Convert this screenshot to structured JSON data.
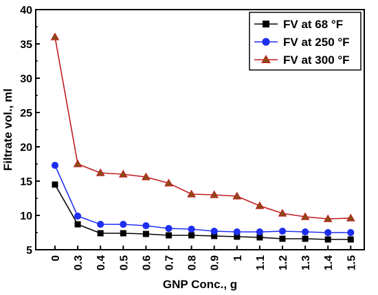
{
  "chart_data": {
    "type": "line",
    "xlabel": "GNP Conc., g",
    "ylabel": "Filtrate vol., ml",
    "categories": [
      "0",
      "0.3",
      "0.4",
      "0.5",
      "0.6",
      "0.7",
      "0.8",
      "0.9",
      "1",
      "1.1",
      "1.2",
      "1.3",
      "1.4",
      "1.5"
    ],
    "ylim": [
      5,
      40
    ],
    "yticks": [
      "5",
      "10",
      "15",
      "20",
      "25",
      "30",
      "35",
      "40"
    ],
    "grid": false,
    "legend_position": "top-right",
    "series": [
      {
        "name": "FV at 68 °F",
        "color": "#000000",
        "marker": "square",
        "values": [
          14.5,
          8.7,
          7.4,
          7.4,
          7.3,
          7.1,
          7.1,
          7.0,
          6.9,
          6.8,
          6.6,
          6.6,
          6.5,
          6.5
        ]
      },
      {
        "name": "FV at 250 °F",
        "color": "#1f2ff0",
        "marker": "circle",
        "values": [
          17.3,
          9.9,
          8.7,
          8.7,
          8.5,
          8.1,
          8.0,
          7.7,
          7.6,
          7.6,
          7.7,
          7.6,
          7.5,
          7.5
        ]
      },
      {
        "name": "FV at 300 °F",
        "color": "#c0191e",
        "marker": "triangle",
        "marker_fill": "#8a4b14",
        "values": [
          36.0,
          17.5,
          16.2,
          16.0,
          15.6,
          14.7,
          13.1,
          13.0,
          12.8,
          11.4,
          10.3,
          9.8,
          9.5,
          9.6
        ]
      }
    ]
  }
}
